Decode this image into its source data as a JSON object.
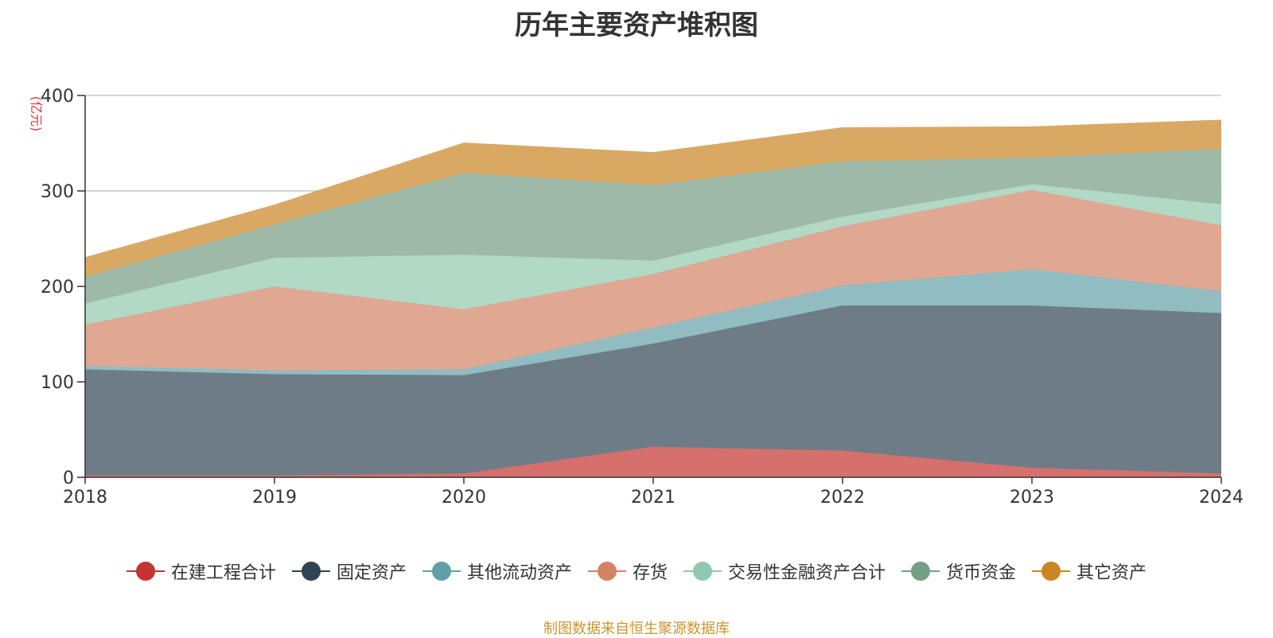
{
  "chart_data": {
    "type": "area",
    "stacked": true,
    "title": "历年主要资产堆积图",
    "unit": "(亿元)",
    "x": [
      "2018",
      "2019",
      "2020",
      "2021",
      "2022",
      "2023",
      "2024"
    ],
    "ylim": [
      0,
      400
    ],
    "yticks": [
      0,
      100,
      200,
      300,
      400
    ],
    "grid": true,
    "legend_position": "bottom",
    "series": [
      {
        "name": "在建工程合计",
        "color": "#c23531",
        "fill": "#d6706c",
        "values": [
          2,
          2,
          4,
          32,
          28,
          10,
          4
        ]
      },
      {
        "name": "固定资产",
        "color": "#2f4554",
        "fill": "#6e7c87",
        "values": [
          111,
          106,
          103,
          108,
          152,
          170,
          168
        ]
      },
      {
        "name": "其他流动资产",
        "color": "#61a0a8",
        "fill": "#90bcc2",
        "values": [
          4,
          4,
          6,
          17,
          21,
          38,
          23
        ]
      },
      {
        "name": "存货",
        "color": "#d48265",
        "fill": "#e0a792",
        "values": [
          43,
          88,
          63,
          56,
          62,
          83,
          69
        ]
      },
      {
        "name": "交易性金融资产合计",
        "color": "#91c7ae",
        "fill": "#b1d9c6",
        "values": [
          22,
          30,
          57,
          14,
          10,
          6,
          22
        ]
      },
      {
        "name": "货币资金",
        "color": "#749f83",
        "fill": "#9eb9a7",
        "values": [
          28,
          35,
          86,
          79,
          58,
          28,
          58
        ]
      },
      {
        "name": "其它资产",
        "color": "#ca8622",
        "fill": "#d9a964",
        "values": [
          20,
          20,
          31,
          34,
          35,
          32,
          30
        ]
      }
    ]
  },
  "source_note": "制图数据来自恒生聚源数据库"
}
